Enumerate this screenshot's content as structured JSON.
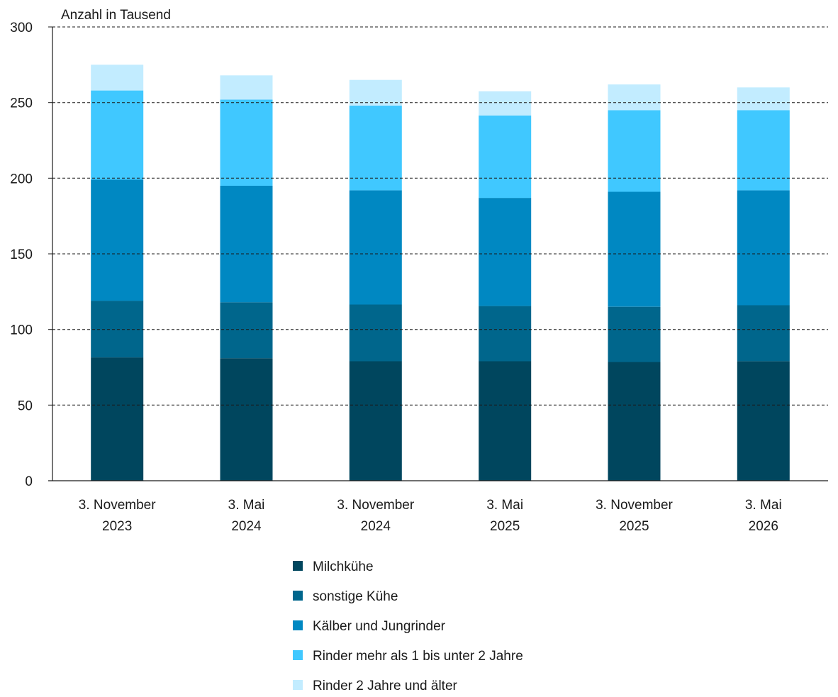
{
  "chart_data": {
    "type": "bar",
    "stacked": true,
    "ylabel": "Anzahl in Tausend",
    "ylim": [
      0,
      300
    ],
    "yticks": [
      "0",
      "50",
      "100",
      "150",
      "200",
      "250",
      "300"
    ],
    "ytick_values": [
      0,
      50,
      100,
      150,
      200,
      250,
      300
    ],
    "grid": "horizontal dashed",
    "legend_position": "bottom",
    "categories": [
      [
        "3. November",
        "2023"
      ],
      [
        "3. Mai",
        "2024"
      ],
      [
        "3. November",
        "2024"
      ],
      [
        "3. Mai",
        "2025"
      ],
      [
        "3. November",
        "2025"
      ],
      [
        "3. Mai",
        "2026"
      ]
    ],
    "series": [
      {
        "name": "Milchkühe",
        "color": "#00465e",
        "values": [
          81.5,
          81,
          79,
          79,
          78.5,
          79
        ]
      },
      {
        "name": "sonstige Kühe",
        "color": "#00668c",
        "values": [
          37.5,
          37,
          37.5,
          36.5,
          36.5,
          37
        ]
      },
      {
        "name": "Kälber und Jungrinder",
        "color": "#0088c2",
        "values": [
          80,
          77,
          75.5,
          71.5,
          76,
          76
        ]
      },
      {
        "name": "Rinder mehr als 1 bis unter 2 Jahre",
        "color": "#40c8ff",
        "values": [
          59,
          57,
          56,
          54.5,
          54,
          53
        ]
      },
      {
        "name": "Rinder 2 Jahre und älter",
        "color": "#c2ecff",
        "values": [
          17,
          16,
          17,
          16,
          17,
          15
        ]
      }
    ]
  }
}
